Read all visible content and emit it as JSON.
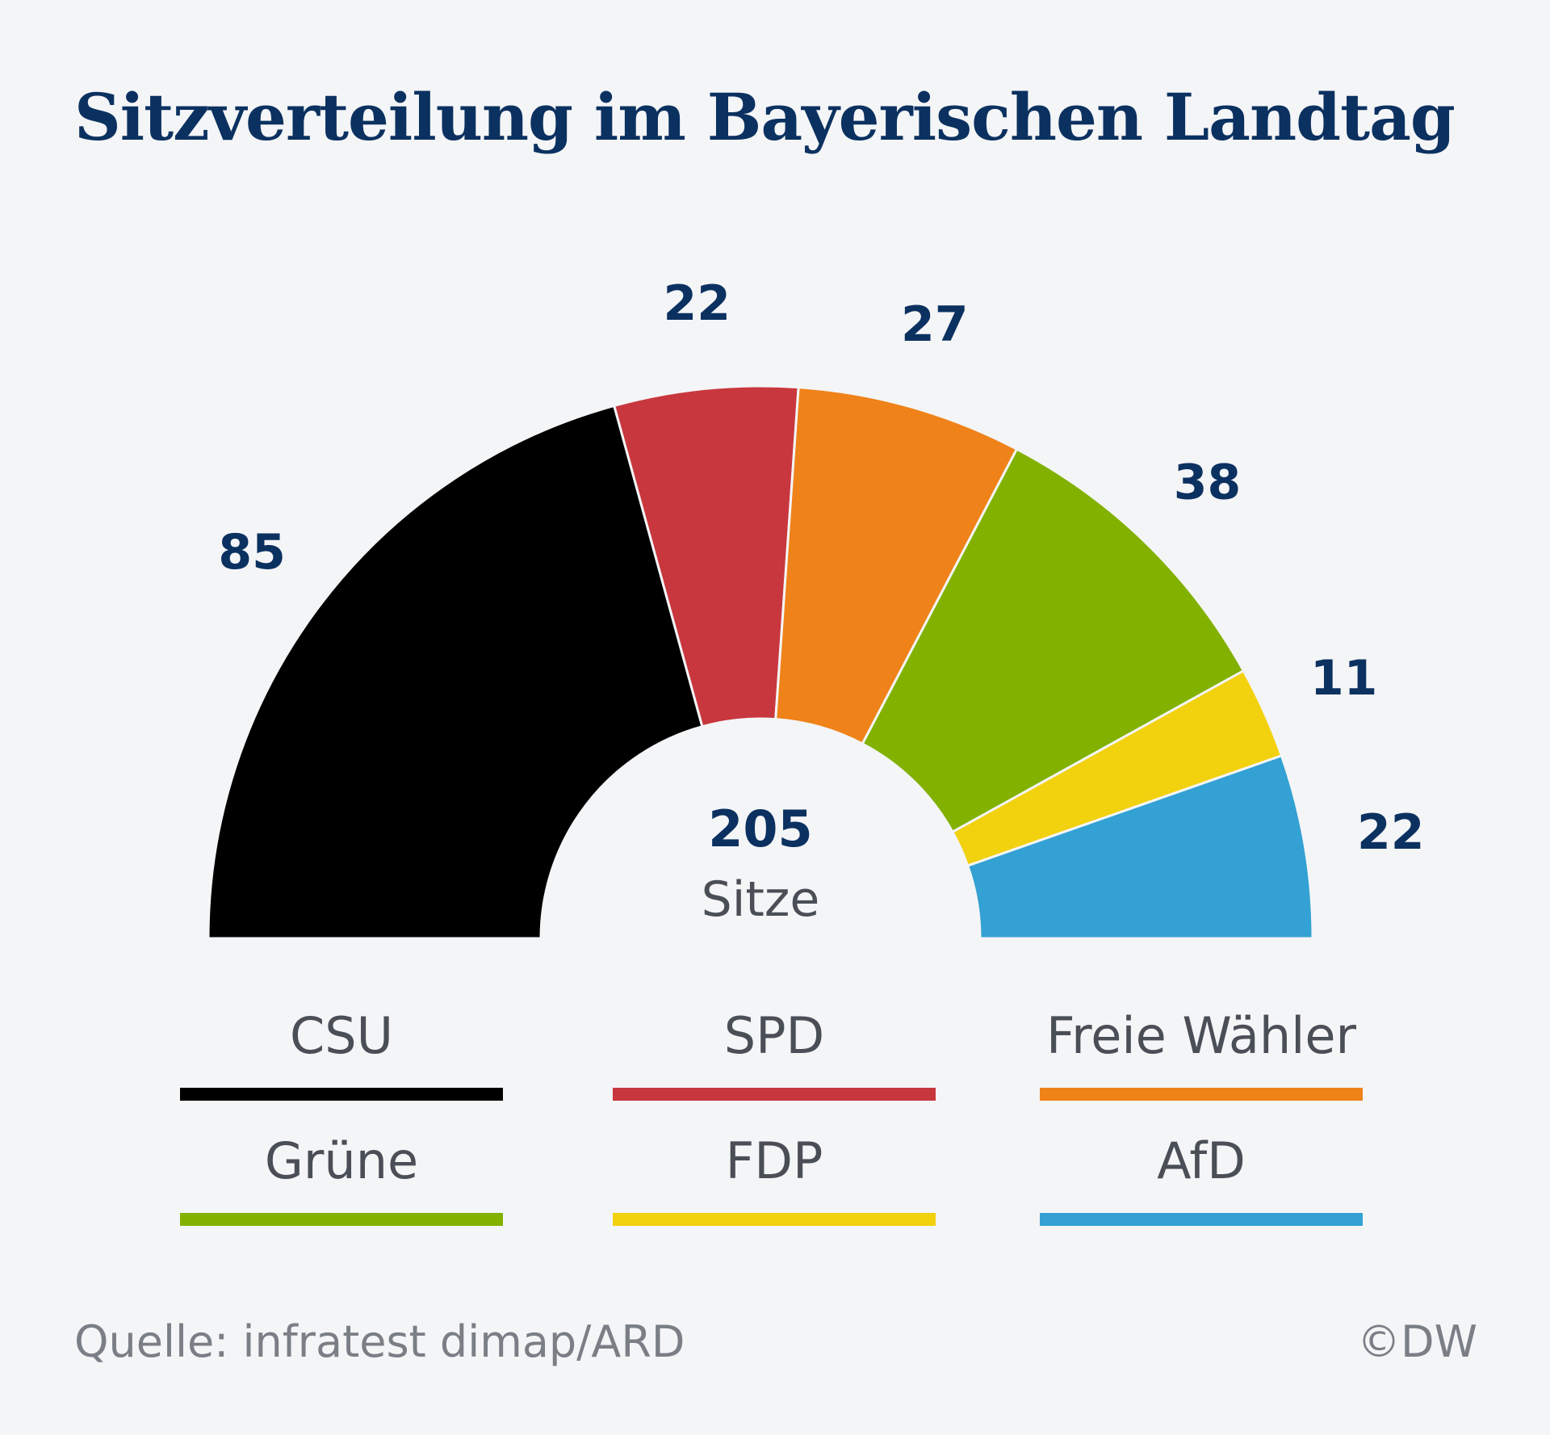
{
  "title": "Sitzverteilung im Bayerischen Landtag",
  "source": "Quelle: infratest dimap/ARD",
  "copyright": "©DW",
  "chart_data": {
    "type": "parliament-semicircle",
    "title": "Sitzverteilung im Bayerischen Landtag",
    "total": 205,
    "total_label": "Sitze",
    "parties": [
      {
        "name": "CSU",
        "seats": 85,
        "color": "#000000"
      },
      {
        "name": "SPD",
        "seats": 22,
        "color": "#c8373d"
      },
      {
        "name": "Freie Wähler",
        "seats": 27,
        "color": "#ef8219"
      },
      {
        "name": "Grüne",
        "seats": 38,
        "color": "#82b100"
      },
      {
        "name": "FDP",
        "seats": 11,
        "color": "#f2d10e"
      },
      {
        "name": "AfD",
        "seats": 22,
        "color": "#33a1d3"
      }
    ]
  }
}
